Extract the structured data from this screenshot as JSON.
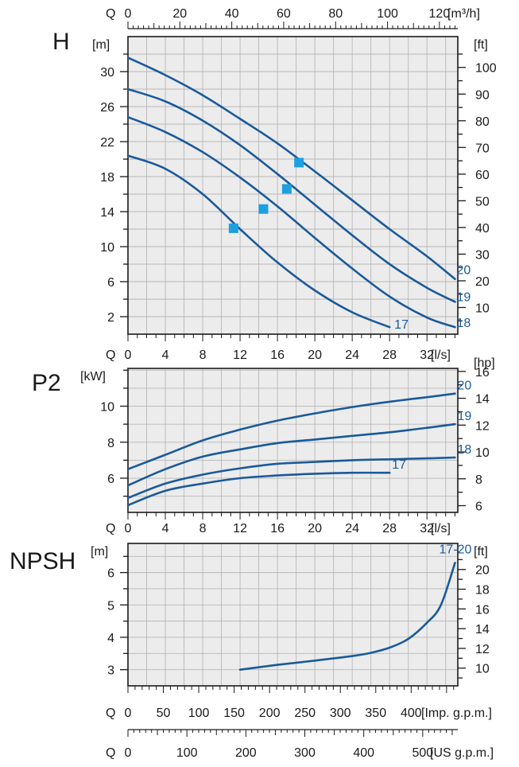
{
  "colors": {
    "curve": "#1a5a9a",
    "marker": "#1ea0e0",
    "panel_bg": "#ececec",
    "grid": "#b8b8b8",
    "axis": "#1a1a1a"
  },
  "labels": {
    "q": "Q",
    "flow_m3h_unit": "[m³/h]",
    "flow_ls_unit": "[l/s]",
    "flow_imp_unit": "[Imp. g.p.m.]",
    "flow_us_unit": "[US g.p.m.]"
  },
  "axes": {
    "m3h_ticks": [
      "0",
      "20",
      "40",
      "60",
      "80",
      "100",
      "120"
    ],
    "ls_ticks": [
      "0",
      "4",
      "8",
      "12",
      "16",
      "20",
      "24",
      "28",
      "32"
    ],
    "imp_ticks": [
      "0",
      "50",
      "100",
      "150",
      "200",
      "250",
      "300",
      "350",
      "400"
    ],
    "us_ticks": [
      "0",
      "100",
      "200",
      "300",
      "400",
      "500"
    ]
  },
  "chart_data": [
    {
      "id": "head",
      "type": "line",
      "title": "H",
      "left_unit": "[m]",
      "right_unit": "[ft]",
      "x_unit": "l/s",
      "xlim": [
        0,
        35.3
      ],
      "ylim": [
        0,
        34
      ],
      "y_ticks_left": [
        2,
        6,
        10,
        14,
        18,
        22,
        26,
        30
      ],
      "y_ticks_right": [
        10,
        20,
        30,
        40,
        50,
        60,
        70,
        80,
        90,
        100
      ],
      "grid": true,
      "series": [
        {
          "name": "20",
          "points": [
            [
              0,
              31.6
            ],
            [
              4,
              29.6
            ],
            [
              8,
              27.3
            ],
            [
              12,
              24.6
            ],
            [
              16,
              21.8
            ],
            [
              20,
              18.6
            ],
            [
              24,
              15.3
            ],
            [
              28,
              12.0
            ],
            [
              32,
              8.9
            ],
            [
              35,
              6.3
            ]
          ],
          "marker": [
            18.3,
            19.6
          ]
        },
        {
          "name": "19",
          "points": [
            [
              0,
              28.0
            ],
            [
              4,
              26.6
            ],
            [
              8,
              24.4
            ],
            [
              12,
              21.6
            ],
            [
              16,
              18.3
            ],
            [
              20,
              14.8
            ],
            [
              24,
              11.3
            ],
            [
              28,
              8.0
            ],
            [
              32,
              5.3
            ],
            [
              35,
              3.7
            ]
          ],
          "marker": [
            17.0,
            16.6
          ]
        },
        {
          "name": "18",
          "points": [
            [
              0,
              24.8
            ],
            [
              4,
              23.1
            ],
            [
              8,
              20.8
            ],
            [
              12,
              17.9
            ],
            [
              16,
              14.6
            ],
            [
              20,
              11.0
            ],
            [
              24,
              7.5
            ],
            [
              28,
              4.3
            ],
            [
              32,
              1.9
            ],
            [
              35,
              0.8
            ]
          ],
          "marker": [
            14.5,
            14.3
          ]
        },
        {
          "name": "17",
          "points": [
            [
              0,
              20.4
            ],
            [
              4,
              18.9
            ],
            [
              8,
              16.0
            ],
            [
              12,
              12.0
            ],
            [
              16,
              8.2
            ],
            [
              20,
              5.0
            ],
            [
              24,
              2.5
            ],
            [
              28,
              0.8
            ]
          ],
          "marker": [
            11.3,
            12.1
          ]
        }
      ]
    },
    {
      "id": "power",
      "type": "line",
      "title": "P2",
      "left_unit": "[kW]",
      "right_unit": "[hp]",
      "x_unit": "l/s",
      "xlim": [
        0,
        35.3
      ],
      "ylim": [
        4.1,
        12.1
      ],
      "y_ticks_left": [
        6,
        8,
        10
      ],
      "y_ticks_right": [
        6,
        8,
        10,
        12,
        14,
        16
      ],
      "grid": true,
      "series": [
        {
          "name": "20",
          "points": [
            [
              0,
              6.5
            ],
            [
              4,
              7.3
            ],
            [
              8,
              8.1
            ],
            [
              12,
              8.7
            ],
            [
              16,
              9.2
            ],
            [
              20,
              9.6
            ],
            [
              24,
              9.95
            ],
            [
              28,
              10.25
            ],
            [
              32,
              10.5
            ],
            [
              35,
              10.7
            ]
          ]
        },
        {
          "name": "19",
          "points": [
            [
              0,
              5.6
            ],
            [
              4,
              6.5
            ],
            [
              8,
              7.2
            ],
            [
              12,
              7.6
            ],
            [
              16,
              7.95
            ],
            [
              20,
              8.15
            ],
            [
              24,
              8.35
            ],
            [
              28,
              8.55
            ],
            [
              32,
              8.8
            ],
            [
              35,
              9.0
            ]
          ]
        },
        {
          "name": "18",
          "points": [
            [
              0,
              4.9
            ],
            [
              4,
              5.7
            ],
            [
              8,
              6.2
            ],
            [
              12,
              6.55
            ],
            [
              16,
              6.8
            ],
            [
              20,
              6.9
            ],
            [
              24,
              7.0
            ],
            [
              28,
              7.05
            ],
            [
              32,
              7.1
            ],
            [
              35,
              7.15
            ]
          ]
        },
        {
          "name": "17",
          "points": [
            [
              0,
              4.5
            ],
            [
              4,
              5.3
            ],
            [
              8,
              5.7
            ],
            [
              12,
              6.0
            ],
            [
              16,
              6.15
            ],
            [
              20,
              6.25
            ],
            [
              24,
              6.3
            ],
            [
              28,
              6.3
            ]
          ]
        }
      ]
    },
    {
      "id": "npsh",
      "type": "line",
      "title": "NPSH",
      "left_unit": "[m]",
      "right_unit": "[ft]",
      "x_unit": "l/s",
      "xlim": [
        0,
        35.3
      ],
      "ylim": [
        2.5,
        6.9
      ],
      "y_ticks_left": [
        3,
        4,
        5,
        6
      ],
      "y_ticks_right": [
        10,
        12,
        14,
        16,
        18,
        20
      ],
      "grid": true,
      "series": [
        {
          "name": "17-20",
          "points": [
            [
              12,
              3.0
            ],
            [
              16,
              3.15
            ],
            [
              20,
              3.28
            ],
            [
              24,
              3.42
            ],
            [
              26,
              3.52
            ],
            [
              28,
              3.68
            ],
            [
              30,
              3.95
            ],
            [
              32,
              4.45
            ],
            [
              33.5,
              5.0
            ],
            [
              35,
              6.3
            ]
          ]
        }
      ]
    }
  ]
}
